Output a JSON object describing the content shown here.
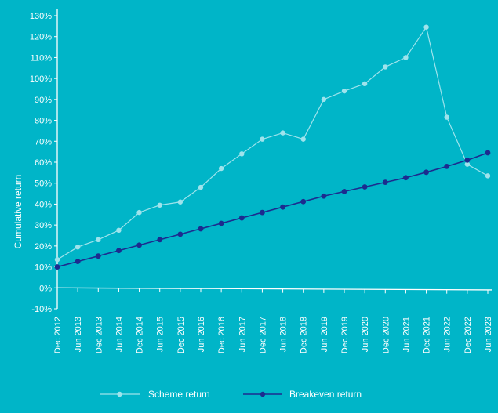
{
  "colors": {
    "background": "#00b5c8",
    "axis": "#ffffff",
    "scheme": "#9ee3ec",
    "breakeven": "#1c2b8f"
  },
  "chart_data": {
    "type": "line",
    "ylabel": "Cumulative return",
    "ylim": [
      -10,
      130
    ],
    "yticks": [
      -10,
      0,
      10,
      20,
      30,
      40,
      50,
      60,
      70,
      80,
      90,
      100,
      110,
      120,
      130
    ],
    "ytick_suffix": "%",
    "grid": false,
    "legend_position": "bottom-center",
    "categories": [
      "Dec 2012",
      "Jun 2013",
      "Dec 2013",
      "Jun 2014",
      "Dec 2014",
      "Jun 2015",
      "Dec 2015",
      "Jun 2016",
      "Dec 2016",
      "Jun 2017",
      "Dec 2017",
      "Jun 2018",
      "Dec 2018",
      "Jun 2019",
      "Dec 2019",
      "Jun 2020",
      "Dec 2020",
      "Jun 2021",
      "Dec 2021",
      "Jun 2022",
      "Dec 2022",
      "Jun 2023"
    ],
    "series": [
      {
        "name": "Scheme return",
        "color": "#9ee3ec",
        "values": [
          13.5,
          19.5,
          23,
          27.5,
          36,
          39.5,
          41,
          48,
          57,
          64,
          71,
          74,
          71,
          90,
          94,
          97.5,
          105.5,
          110,
          124.5,
          81.5,
          59,
          53.5
        ]
      },
      {
        "name": "Breakeven return",
        "color": "#1c2b8f",
        "values": [
          10,
          12.6,
          15.2,
          17.8,
          20.4,
          23,
          25.6,
          28.2,
          30.8,
          33.4,
          36,
          38.6,
          41.2,
          43.8,
          46,
          48.2,
          50.4,
          52.6,
          55.2,
          58,
          61,
          64.5
        ]
      }
    ],
    "baseline": {
      "start": 0,
      "end": -1
    }
  }
}
